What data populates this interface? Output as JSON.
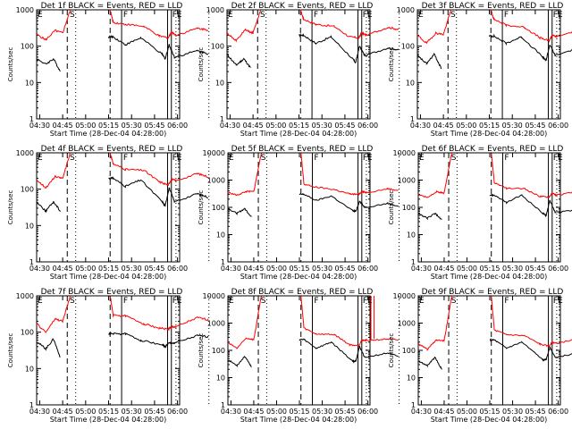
{
  "chart_data": [
    {
      "type": "line",
      "title": "Det 1f BLACK = Events, RED = LLD",
      "xlabel": "Start Time (28-Dec-04 04:28:00)",
      "ylabel": "Counts/sec",
      "ylim": [
        1,
        1000
      ],
      "yscale": "log",
      "yticks": [
        "1",
        "10",
        "100",
        "1000"
      ],
      "xticks": [
        "04:30",
        "04:45",
        "05:00",
        "05:15",
        "05:30",
        "05:45",
        "06:00"
      ],
      "series": [
        {
          "name": "Events",
          "color": "#000000",
          "points": [
            [
              0,
              45
            ],
            [
              5,
              32
            ],
            [
              8,
              35
            ],
            [
              13,
              45
            ],
            [
              14,
              40
            ],
            [
              14.5,
              20
            ],
            [
              15,
              45
            ]
          ],
          "points2": [
            [
              28,
              40
            ],
            [
              29,
              180
            ],
            [
              31,
              120
            ],
            [
              35,
              110
            ],
            [
              38,
              160
            ],
            [
              39,
              110
            ],
            [
              41,
              170
            ],
            [
              43,
              120
            ],
            [
              48,
              90
            ],
            [
              52,
              60
            ],
            [
              56,
              45
            ],
            [
              59,
              47
            ],
            [
              60,
              110
            ],
            [
              61,
              50
            ],
            [
              65,
              55
            ],
            [
              72,
              75
            ],
            [
              76,
              62
            ]
          ]
        },
        {
          "name": "LLD",
          "color": "#ff0000",
          "points": [
            [
              0,
              210
            ],
            [
              5,
              150
            ],
            [
              9,
              170
            ],
            [
              12,
              270
            ],
            [
              14,
              230
            ],
            [
              16,
              240
            ],
            [
              19,
              1000
            ]
          ],
          "points2": [
            [
              26,
              1000
            ],
            [
              27,
              450
            ],
            [
              28,
              550
            ],
            [
              31,
              420
            ],
            [
              36,
              400
            ],
            [
              41,
              350
            ],
            [
              48,
              260
            ],
            [
              54,
              190
            ],
            [
              58,
              170
            ],
            [
              60,
              250
            ],
            [
              62,
              200
            ],
            [
              66,
              230
            ],
            [
              72,
              310
            ],
            [
              76,
              280
            ]
          ]
        }
      ],
      "markers": {
        "E": 0,
        "S": 14,
        "F": 30,
        "FE": [
          59,
          61
        ]
      }
    },
    {
      "type": "line",
      "title": "Det 2f BLACK = Events, RED = LLD",
      "ylim": [
        1,
        1000
      ]
    },
    {
      "type": "line",
      "title": "Det 3f BLACK = Events, RED = LLD",
      "ylim": [
        1,
        1000
      ]
    },
    {
      "type": "line",
      "title": "Det 4f BLACK = Events, RED = LLD",
      "ylim": [
        1,
        1000
      ]
    },
    {
      "type": "line",
      "title": "Det 5f BLACK = Events, RED = LLD",
      "ylim": [
        1,
        10000
      ]
    },
    {
      "type": "line",
      "title": "Det 6f BLACK = Events, RED = LLD",
      "ylim": [
        1,
        10000
      ]
    },
    {
      "type": "line",
      "title": "Det 7f BLACK = Events, RED = LLD",
      "ylim": [
        1,
        1000
      ]
    },
    {
      "type": "line",
      "title": "Det 8f BLACK = Events, RED = LLD",
      "ylim": [
        1,
        10000
      ]
    },
    {
      "type": "line",
      "title": "Det 9f BLACK = Events, RED = LLD",
      "ylim": [
        1,
        10000
      ]
    }
  ],
  "panels": [
    {
      "title": "Det 1f BLACK = Events, RED = LLD",
      "ymax": 1000,
      "ev": [
        45,
        32,
        45,
        20,
        null,
        180,
        110,
        170,
        60,
        45,
        110,
        50,
        75,
        62
      ],
      "lld": [
        210,
        150,
        270,
        230,
        1000,
        null,
        450,
        400,
        350,
        190,
        170,
        250,
        200,
        310,
        280
      ],
      "letters": "classic"
    },
    {
      "title": "Det 2f BLACK = Events, RED = LLD",
      "ymax": 1000,
      "ev": [
        60,
        30,
        45,
        25,
        null,
        200,
        120,
        180,
        45,
        35,
        100,
        55,
        90,
        80
      ],
      "lld": [
        230,
        140,
        280,
        230,
        1000,
        null,
        550,
        400,
        350,
        180,
        170,
        230,
        200,
        330,
        290
      ],
      "letters": "classic"
    },
    {
      "title": "Det 3f BLACK = Events, RED = LLD",
      "ymax": 1000,
      "ev": [
        55,
        33,
        60,
        25,
        null,
        190,
        120,
        180,
        50,
        40,
        110,
        55,
        90,
        72
      ],
      "lld": [
        200,
        120,
        230,
        210,
        1000,
        null,
        550,
        380,
        330,
        170,
        140,
        200,
        180,
        280,
        230
      ],
      "letters": "classic"
    },
    {
      "title": "Det 4f BLACK = Events, RED = LLD",
      "ymax": 1000,
      "ev": [
        45,
        25,
        45,
        25,
        null,
        200,
        120,
        180,
        45,
        35,
        110,
        45,
        75,
        60
      ],
      "lld": [
        180,
        110,
        220,
        200,
        1000,
        null,
        500,
        350,
        330,
        160,
        130,
        190,
        170,
        270,
        220
      ],
      "letters": "classic"
    },
    {
      "title": "Det 5f BLACK = Events, RED = LLD",
      "ymax": 10000,
      "ev": [
        90,
        60,
        90,
        45,
        null,
        300,
        180,
        260,
        75,
        70,
        170,
        100,
        140,
        110
      ],
      "lld": [
        350,
        280,
        380,
        380,
        10000,
        null,
        700,
        550,
        450,
        310,
        300,
        380,
        350,
        480,
        420
      ],
      "letters": "box"
    },
    {
      "title": "Det 6f BLACK = Events, RED = LLD",
      "ymax": 10000,
      "ev": [
        60,
        40,
        60,
        35,
        null,
        280,
        150,
        280,
        60,
        50,
        180,
        65,
        80,
        65
      ],
      "lld": [
        300,
        230,
        380,
        330,
        10000,
        null,
        800,
        500,
        480,
        250,
        240,
        330,
        280,
        380,
        350
      ],
      "letters": "box"
    },
    {
      "title": "Det 7f BLACK = Events, RED = LLD",
      "ymax": 1000,
      "ev": [
        55,
        35,
        65,
        20,
        null,
        90,
        90,
        60,
        45,
        40,
        50,
        50,
        80,
        75
      ],
      "lld": [
        170,
        100,
        230,
        200,
        1000,
        null,
        290,
        280,
        170,
        130,
        120,
        140,
        140,
        250,
        220
      ],
      "letters": "classic"
    },
    {
      "title": "Det 8f BLACK = Events, RED = LLD",
      "ymax": 10000,
      "ev": [
        45,
        28,
        60,
        25,
        null,
        250,
        120,
        200,
        40,
        40,
        140,
        55,
        80,
        60
      ],
      "lld": [
        190,
        120,
        280,
        250,
        10000,
        null,
        650,
        400,
        380,
        160,
        150,
        240,
        230,
        260,
        240
      ],
      "letters": "box",
      "spike": true
    },
    {
      "title": "Det 9f BLACK = Events, RED = LLD",
      "ymax": 10000,
      "ev": [
        40,
        28,
        55,
        20,
        null,
        240,
        120,
        200,
        45,
        45,
        130,
        55,
        80,
        60
      ],
      "lld": [
        170,
        110,
        240,
        220,
        10000,
        null,
        550,
        380,
        340,
        170,
        140,
        200,
        180,
        270,
        220
      ],
      "letters": "box"
    }
  ],
  "xlabel": "Start Time (28-Dec-04 04:28:00)",
  "ylabel": "Counts/sec",
  "xticks": [
    "04:30",
    "04:45",
    "05:00",
    "05:15",
    "05:30",
    "05:45",
    "06:00"
  ]
}
